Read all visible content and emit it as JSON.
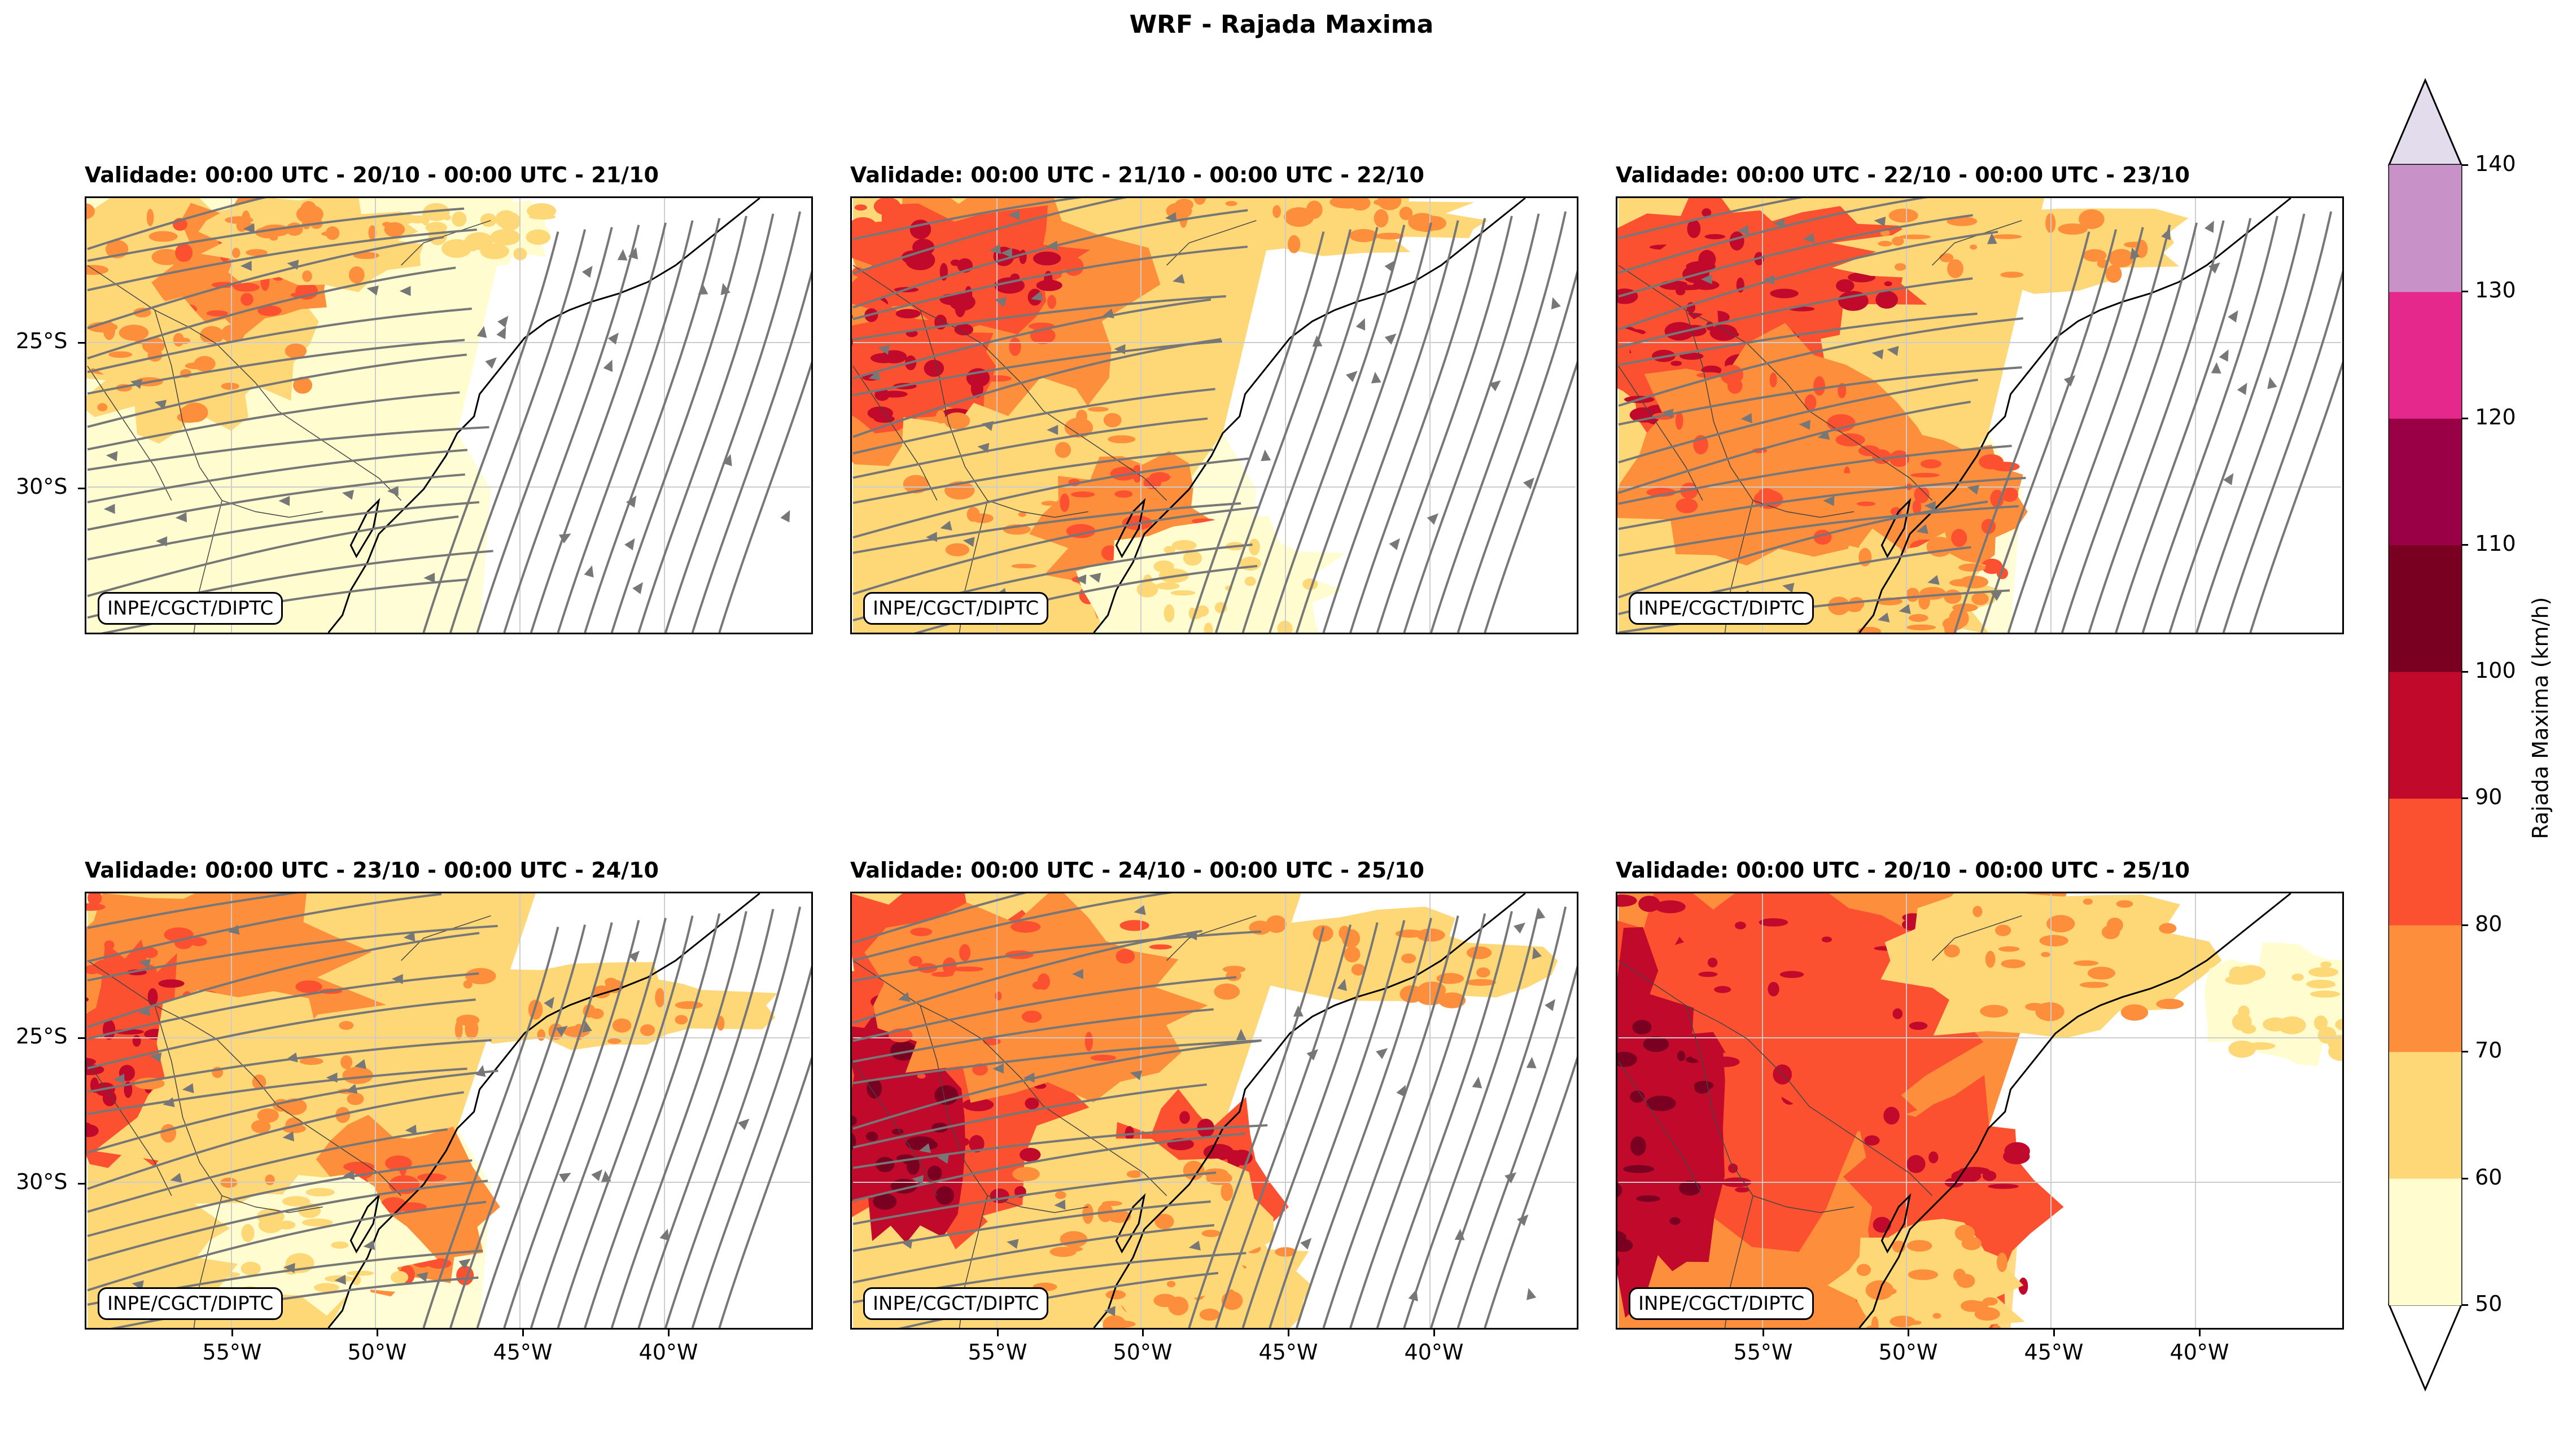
{
  "title": "WRF - Rajada Maxima",
  "credit": "INPE/CGCT/DIPTC",
  "panels": [
    {
      "title": "Validade: 00:00 UTC - 20/10 - 00:00 UTC - 21/10"
    },
    {
      "title": "Validade: 00:00 UTC - 21/10 - 00:00 UTC - 22/10"
    },
    {
      "title": "Validade: 00:00 UTC - 22/10 - 00:00 UTC - 23/10"
    },
    {
      "title": "Validade: 00:00 UTC - 23/10 - 00:00 UTC - 24/10"
    },
    {
      "title": "Validade: 00:00 UTC - 24/10 - 00:00 UTC - 25/10"
    },
    {
      "title": "Validade: 00:00 UTC - 20/10 - 00:00 UTC - 25/10"
    }
  ],
  "axes": {
    "lat_ticks": [
      "25°S",
      "30°S"
    ],
    "lon_ticks": [
      "55°W",
      "50°W",
      "45°W",
      "40°W"
    ]
  },
  "colorbar": {
    "label": "Rajada Maxima (km/h)",
    "ticks": [
      "50",
      "60",
      "70",
      "80",
      "90",
      "100",
      "110",
      "120",
      "130",
      "140"
    ],
    "colors": [
      "#fffdd0",
      "#fed777",
      "#fd8e3c",
      "#fc5130",
      "#c0092b",
      "#7a0022",
      "#9a0046",
      "#e5288b",
      "#c892c8",
      "#e2dced"
    ]
  },
  "map_colors": {
    "streamline": "#777777",
    "coast": "#000000",
    "border": "#444444",
    "grid": "#cccccc"
  }
}
